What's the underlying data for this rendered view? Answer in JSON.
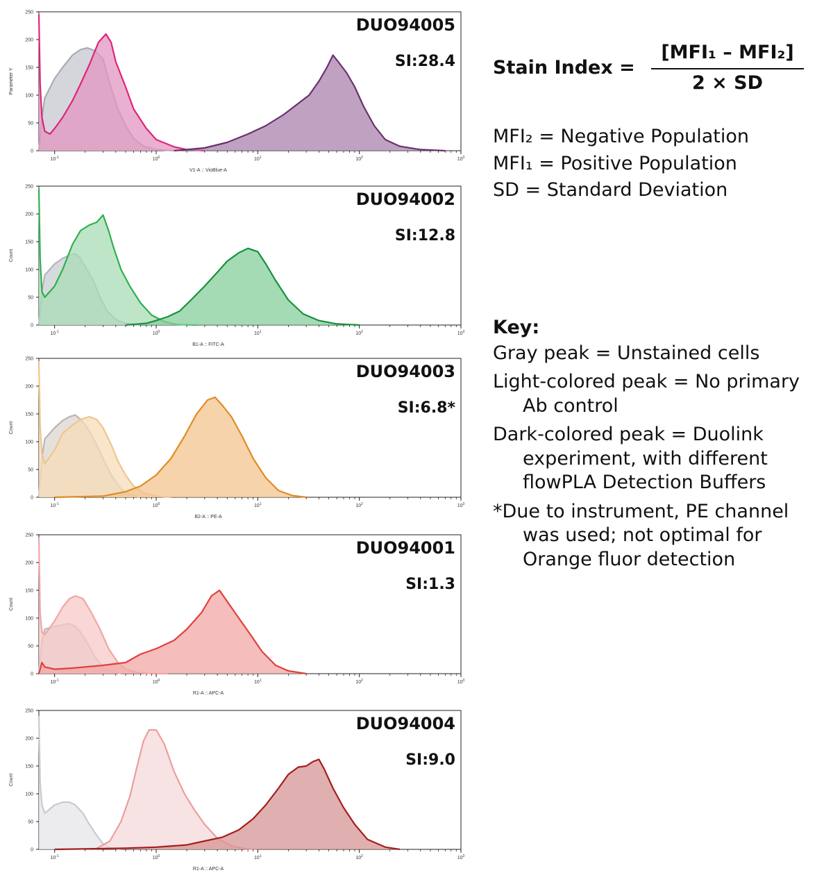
{
  "chart_data": [
    {
      "type": "area",
      "name": "DUO94005",
      "si_label": "SI:28.4",
      "xlabel": "V1-A :: VioBlue-A",
      "ylabel": "Parameter Y",
      "xscale": "log",
      "xlim": [
        0.07,
        1000
      ],
      "ylim": [
        0,
        250
      ],
      "yticks": [
        0,
        50,
        100,
        150,
        200,
        250
      ],
      "xtick_labels": [
        "10-1",
        "10^0",
        "10^1",
        "10^2",
        "10^3"
      ],
      "series": [
        {
          "name": "Unstained cells",
          "color": "#c5c8cf",
          "stroke": "#a8acb5",
          "x": [
            0.07,
            0.075,
            0.08,
            0.1,
            0.12,
            0.15,
            0.18,
            0.21,
            0.25,
            0.3,
            0.35,
            0.42,
            0.5,
            0.6,
            0.75,
            1.0,
            1.5
          ],
          "y": [
            0,
            60,
            95,
            130,
            150,
            172,
            182,
            185,
            180,
            165,
            120,
            75,
            45,
            22,
            8,
            2,
            0
          ]
        },
        {
          "name": "No primary Ab control",
          "color": "#e395c2",
          "stroke": "#e0237a",
          "x": [
            0.07,
            0.072,
            0.075,
            0.08,
            0.09,
            0.1,
            0.12,
            0.15,
            0.18,
            0.22,
            0.27,
            0.32,
            0.36,
            0.4,
            0.5,
            0.6,
            0.8,
            1.0,
            1.5,
            2.0,
            3.0
          ],
          "y": [
            245,
            120,
            60,
            35,
            30,
            40,
            60,
            90,
            120,
            155,
            195,
            210,
            195,
            160,
            115,
            75,
            40,
            20,
            7,
            2,
            0
          ]
        },
        {
          "name": "Duolink experiment",
          "color": "#a983ad",
          "stroke": "#6b2f6f",
          "x": [
            1.5,
            2,
            3,
            5,
            8,
            12,
            18,
            25,
            32,
            40,
            48,
            55,
            62,
            75,
            90,
            110,
            140,
            180,
            250,
            400,
            700
          ],
          "y": [
            0,
            2,
            5,
            15,
            30,
            45,
            65,
            85,
            100,
            125,
            150,
            172,
            160,
            140,
            115,
            80,
            45,
            20,
            8,
            2,
            0
          ]
        }
      ]
    },
    {
      "type": "area",
      "name": "DUO94002",
      "si_label": "SI:12.8",
      "xlabel": "B1-A :: FITC-A",
      "ylabel": "Count",
      "xscale": "log",
      "xlim": [
        0.07,
        1000
      ],
      "ylim": [
        0,
        250
      ],
      "yticks": [
        0,
        50,
        100,
        150,
        200,
        250
      ],
      "xtick_labels": [
        "10-1",
        "10^0",
        "10^1",
        "10^2",
        "10^3"
      ],
      "series": [
        {
          "name": "Unstained cells",
          "color": "#c9cdd2",
          "stroke": "#b0b5bc",
          "x": [
            0.07,
            0.075,
            0.08,
            0.1,
            0.12,
            0.14,
            0.16,
            0.18,
            0.2,
            0.24,
            0.28,
            0.33,
            0.4,
            0.5,
            0.7
          ],
          "y": [
            0,
            60,
            90,
            110,
            120,
            126,
            128,
            120,
            105,
            80,
            50,
            25,
            10,
            3,
            0
          ]
        },
        {
          "name": "No primary Ab control",
          "color": "#a9dcb5",
          "stroke": "#2eb04e",
          "x": [
            0.07,
            0.072,
            0.075,
            0.08,
            0.1,
            0.12,
            0.15,
            0.18,
            0.22,
            0.26,
            0.3,
            0.34,
            0.38,
            0.45,
            0.55,
            0.7,
            0.9,
            1.2,
            1.6,
            2.5
          ],
          "y": [
            245,
            120,
            60,
            50,
            70,
            100,
            145,
            170,
            180,
            185,
            198,
            170,
            140,
            100,
            70,
            40,
            18,
            6,
            1,
            0
          ]
        },
        {
          "name": "Duolink experiment",
          "color": "#86cd9b",
          "stroke": "#16913d",
          "x": [
            0.5,
            0.8,
            1,
            1.3,
            1.7,
            2.2,
            3,
            4,
            5,
            6.5,
            8,
            10,
            12,
            15,
            20,
            28,
            40,
            60,
            100
          ],
          "y": [
            0,
            3,
            8,
            15,
            25,
            45,
            70,
            95,
            115,
            130,
            138,
            132,
            110,
            80,
            45,
            20,
            8,
            2,
            0
          ]
        }
      ]
    },
    {
      "type": "area",
      "name": "DUO94003",
      "si_label": "SI:6.8*",
      "xlabel": "B2-A :: PE-A",
      "ylabel": "Count",
      "xscale": "log",
      "xlim": [
        0.07,
        1000
      ],
      "ylim": [
        0,
        250
      ],
      "yticks": [
        0,
        50,
        100,
        150,
        200,
        250
      ],
      "xtick_labels": [
        "10-1",
        "10^0",
        "10^1",
        "10^2",
        "10^3"
      ],
      "series": [
        {
          "name": "Unstained cells",
          "color": "#dcd6d0",
          "stroke": "#b9b6b2",
          "x": [
            0.07,
            0.075,
            0.08,
            0.1,
            0.12,
            0.14,
            0.16,
            0.18,
            0.21,
            0.25,
            0.3,
            0.36,
            0.45,
            0.55,
            0.7
          ],
          "y": [
            0,
            70,
            105,
            125,
            138,
            145,
            148,
            140,
            125,
            100,
            70,
            40,
            15,
            4,
            0
          ]
        },
        {
          "name": "No primary Ab control",
          "color": "#f6dcb8",
          "stroke": "#f0c58d",
          "x": [
            0.07,
            0.072,
            0.075,
            0.08,
            0.1,
            0.12,
            0.15,
            0.18,
            0.22,
            0.26,
            0.3,
            0.36,
            0.42,
            0.5,
            0.6,
            0.75,
            1.0,
            1.4
          ],
          "y": [
            245,
            130,
            80,
            60,
            85,
            115,
            130,
            140,
            145,
            140,
            125,
            95,
            65,
            40,
            20,
            8,
            2,
            0
          ]
        },
        {
          "name": "Duolink experiment",
          "color": "#f3c48e",
          "stroke": "#e08b23",
          "x": [
            0.1,
            0.3,
            0.5,
            0.7,
            1,
            1.4,
            1.9,
            2.5,
            3.2,
            3.8,
            4.5,
            5.5,
            7,
            9,
            12,
            16,
            22,
            30
          ],
          "y": [
            0,
            2,
            10,
            20,
            40,
            70,
            110,
            150,
            175,
            180,
            165,
            145,
            110,
            70,
            35,
            12,
            3,
            0
          ]
        }
      ]
    },
    {
      "type": "area",
      "name": "DUO94001",
      "si_label": "SI:1.3",
      "xlabel": "R1-A :: APC-A",
      "ylabel": "Count",
      "xscale": "log",
      "xlim": [
        0.07,
        1000
      ],
      "ylim": [
        0,
        250
      ],
      "yticks": [
        0,
        50,
        100,
        150,
        200,
        250
      ],
      "xtick_labels": [
        "10-1",
        "10^0",
        "10^1",
        "10^2",
        "10^3"
      ],
      "series": [
        {
          "name": "Unstained cells",
          "color": "#d8d4d4",
          "stroke": "#bdb7b7",
          "x": [
            0.07,
            0.075,
            0.08,
            0.1,
            0.12,
            0.14,
            0.16,
            0.18,
            0.21,
            0.25,
            0.3,
            0.35,
            0.45
          ],
          "y": [
            0,
            60,
            80,
            85,
            88,
            90,
            85,
            75,
            55,
            30,
            12,
            4,
            0
          ]
        },
        {
          "name": "No primary Ab control",
          "color": "#f6c9c8",
          "stroke": "#efa7a5",
          "x": [
            0.07,
            0.072,
            0.075,
            0.08,
            0.1,
            0.12,
            0.14,
            0.16,
            0.19,
            0.23,
            0.28,
            0.34,
            0.42,
            0.5,
            0.65,
            0.9,
            1.3
          ],
          "y": [
            245,
            110,
            75,
            70,
            95,
            120,
            135,
            140,
            135,
            110,
            80,
            45,
            20,
            8,
            2,
            0,
            0
          ]
        },
        {
          "name": "Duolink experiment",
          "color": "#f1a7a5",
          "stroke": "#e0413b",
          "x": [
            0.07,
            0.075,
            0.08,
            0.1,
            0.15,
            0.2,
            0.3,
            0.5,
            0.7,
            1,
            1.5,
            2,
            2.8,
            3.5,
            4.2,
            5,
            6.5,
            8.5,
            11,
            15,
            20,
            30
          ],
          "y": [
            0,
            20,
            12,
            8,
            10,
            12,
            15,
            20,
            35,
            45,
            60,
            80,
            110,
            140,
            150,
            130,
            100,
            70,
            40,
            15,
            5,
            0
          ]
        }
      ]
    },
    {
      "type": "area",
      "name": "DUO94004",
      "si_label": "SI:9.0",
      "xlabel": "R1-A :: APC-A",
      "ylabel": "Count",
      "xscale": "log",
      "xlim": [
        0.07,
        1000
      ],
      "ylim": [
        0,
        250
      ],
      "yticks": [
        0,
        50,
        100,
        150,
        200,
        250
      ],
      "xtick_labels": [
        "10-1",
        "10^0",
        "10^1",
        "10^2",
        "10^3"
      ],
      "series": [
        {
          "name": "Unstained cells",
          "color": "#e6e6ea",
          "stroke": "#c8cad1",
          "x": [
            0.07,
            0.072,
            0.075,
            0.08,
            0.1,
            0.12,
            0.14,
            0.16,
            0.19,
            0.22,
            0.26,
            0.3,
            0.35,
            0.45
          ],
          "y": [
            240,
            120,
            80,
            65,
            80,
            85,
            85,
            80,
            65,
            45,
            25,
            10,
            3,
            0
          ]
        },
        {
          "name": "No primary Ab control",
          "color": "#f4d9d9",
          "stroke": "#ec9e9e",
          "x": [
            0.25,
            0.35,
            0.45,
            0.55,
            0.65,
            0.75,
            0.85,
            1.0,
            1.2,
            1.5,
            1.9,
            2.4,
            3,
            4,
            5.5,
            7.5,
            10
          ],
          "y": [
            0,
            15,
            50,
            95,
            150,
            195,
            215,
            215,
            190,
            140,
            100,
            70,
            45,
            20,
            6,
            1,
            0
          ]
        },
        {
          "name": "Duolink experiment",
          "color": "#d69494",
          "stroke": "#a51d1d",
          "x": [
            0.1,
            0.5,
            1,
            2,
            3,
            4.5,
            6.5,
            9,
            12,
            16,
            20,
            25,
            30,
            35,
            40,
            45,
            55,
            70,
            90,
            120,
            180,
            250
          ],
          "y": [
            0,
            2,
            4,
            8,
            15,
            22,
            35,
            55,
            80,
            110,
            135,
            148,
            150,
            158,
            162,
            145,
            110,
            75,
            45,
            18,
            4,
            0
          ]
        }
      ]
    }
  ],
  "formula": {
    "lhs": "Stain Index =",
    "numerator": "[MFI₁ – MFI₂]",
    "denominator": "2 × SD"
  },
  "definitions": [
    "MFI₂ = Negative Population",
    "MFI₁ = Positive Population",
    "SD = Standard Deviation"
  ],
  "key": {
    "title": "Key:",
    "items": [
      "Gray peak = Unstained cells",
      "Light-colored peak = No primary Ab control",
      "Dark-colored peak = Duolink experiment, with different flowPLA Detection Buffers",
      "*Due to instrument, PE channel was used; not optimal for Orange fluor detection"
    ]
  }
}
